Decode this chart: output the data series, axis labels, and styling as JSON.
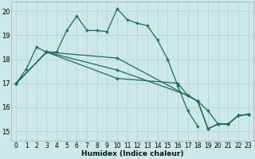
{
  "xlabel": "Humidex (Indice chaleur)",
  "ylabel": "",
  "background_color": "#cde8e8",
  "grid_color": "#b8d8d0",
  "line_color": "#1a6b5a",
  "xlim": [
    -0.5,
    23.5
  ],
  "ylim": [
    14.6,
    20.4
  ],
  "yticks": [
    15,
    16,
    17,
    18,
    19,
    20
  ],
  "xticks": [
    0,
    1,
    2,
    3,
    4,
    5,
    6,
    7,
    8,
    9,
    10,
    11,
    12,
    13,
    14,
    15,
    16,
    17,
    18,
    19,
    20,
    21,
    22,
    23
  ],
  "lines": [
    {
      "x": [
        0,
        1,
        2,
        3,
        4,
        5,
        6,
        7,
        8,
        9,
        10,
        11,
        12,
        13,
        14,
        15,
        16,
        17,
        18
      ],
      "y": [
        17.0,
        17.6,
        18.5,
        18.3,
        18.3,
        19.2,
        19.8,
        19.2,
        19.2,
        19.15,
        20.1,
        19.65,
        19.5,
        19.4,
        18.8,
        18.0,
        16.9,
        15.85,
        15.2
      ]
    },
    {
      "x": [
        0,
        3,
        10,
        18,
        19,
        20,
        21,
        22,
        23
      ],
      "y": [
        17.0,
        18.3,
        18.05,
        16.25,
        15.1,
        15.3,
        15.3,
        15.65,
        15.7
      ]
    },
    {
      "x": [
        0,
        3,
        10,
        17,
        18,
        19,
        20,
        21,
        22,
        23
      ],
      "y": [
        17.0,
        18.3,
        17.55,
        16.5,
        16.25,
        15.1,
        15.3,
        15.3,
        15.65,
        15.7
      ]
    },
    {
      "x": [
        0,
        3,
        10,
        16,
        17,
        18,
        19,
        20,
        21,
        22,
        23
      ],
      "y": [
        17.0,
        18.3,
        17.2,
        17.0,
        16.5,
        16.25,
        15.85,
        15.3,
        15.3,
        15.65,
        15.7
      ]
    }
  ]
}
